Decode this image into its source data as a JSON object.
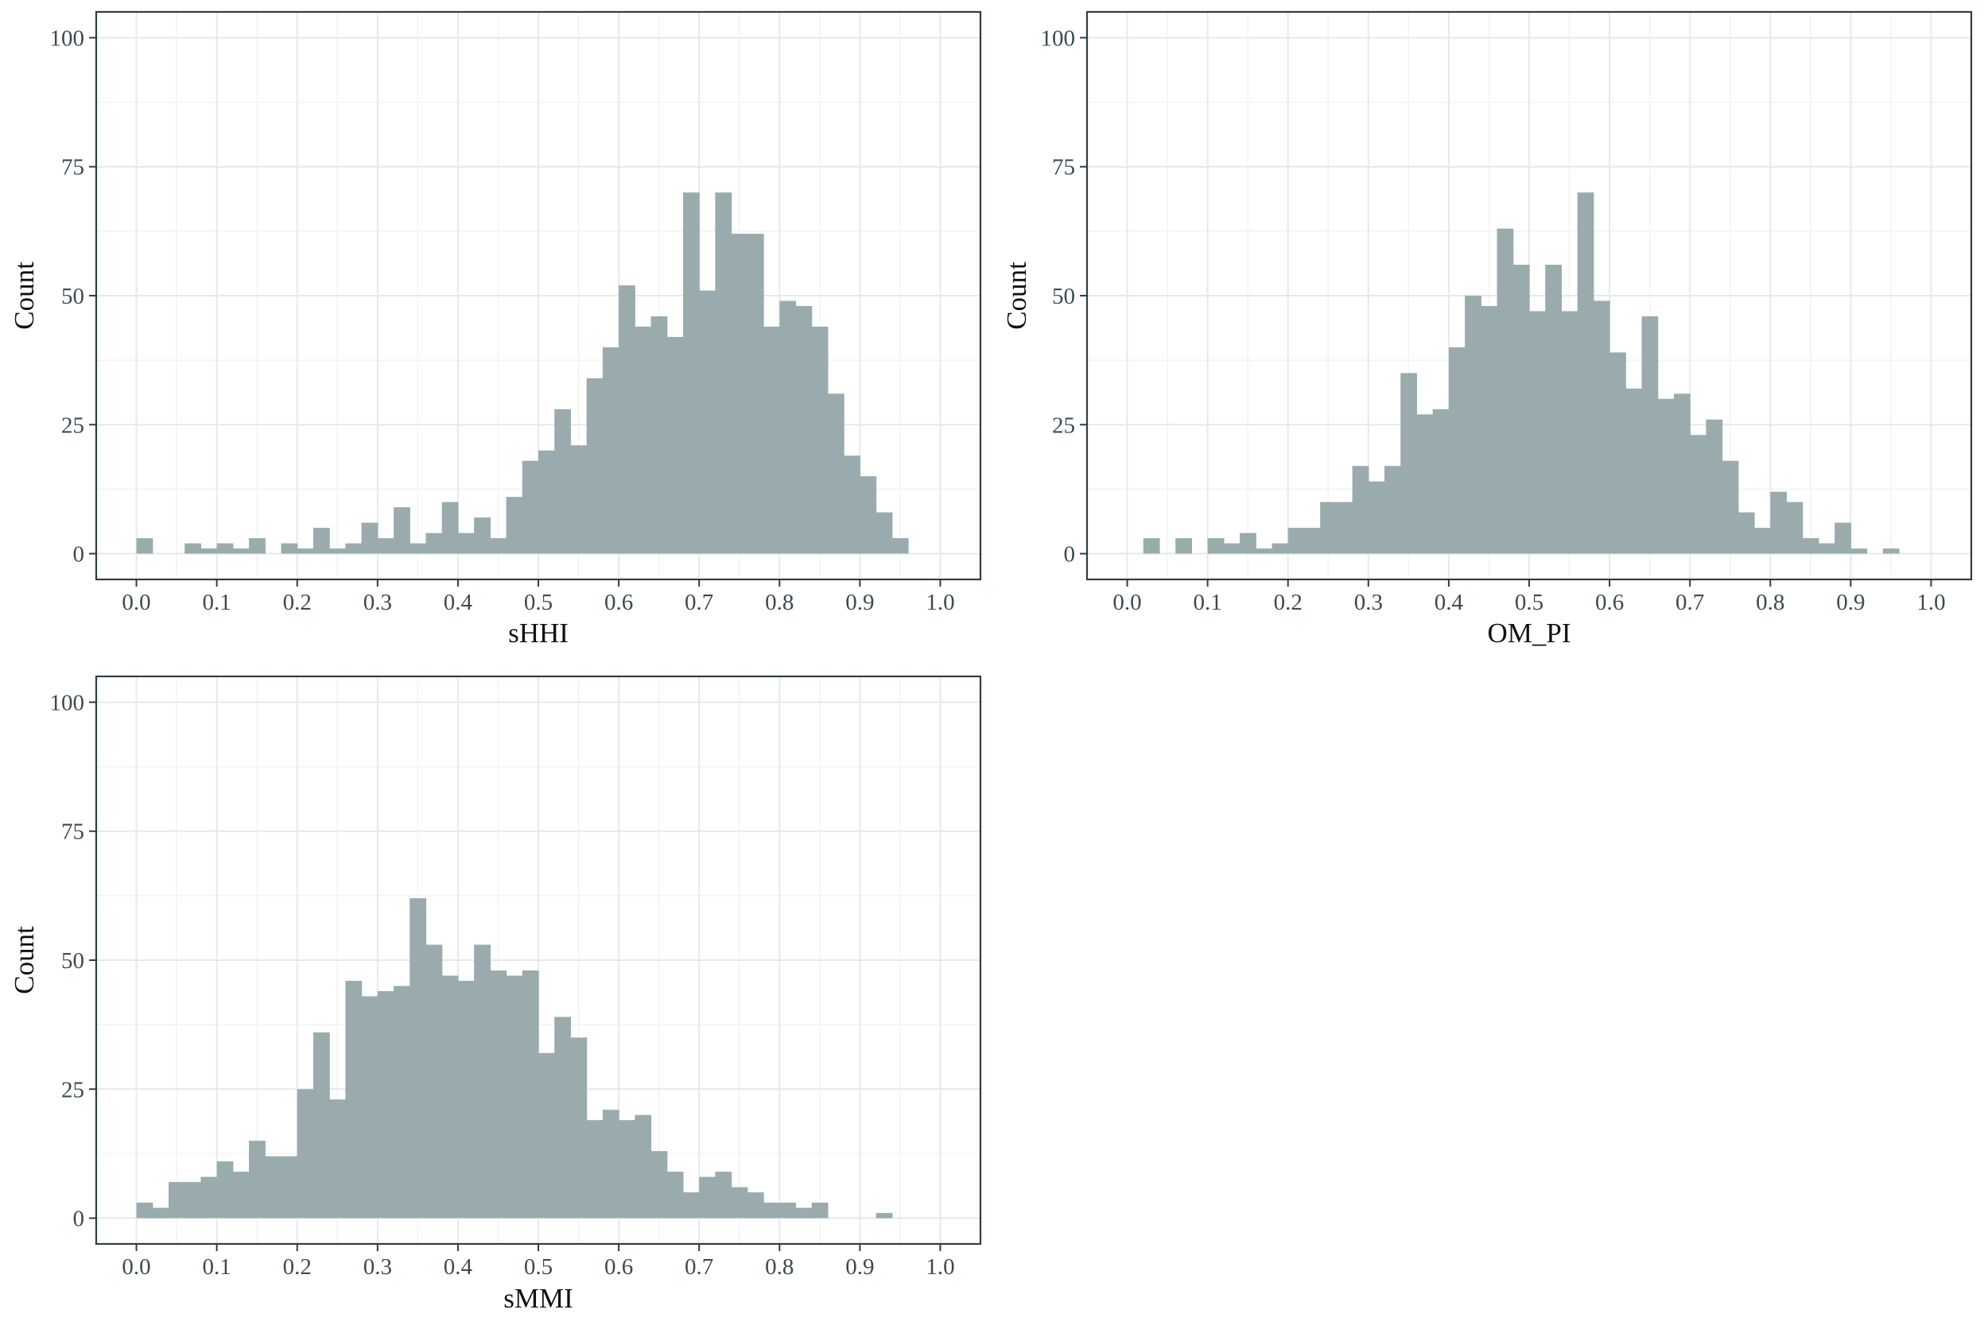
{
  "theme": {
    "bar_fill": "#9aabae",
    "panel_border": "#2f3d45",
    "grid_major": "#e6e9ea",
    "grid_minor": "#f1f3f4",
    "tick_text": "#3c4a52",
    "axis_title": "#111111"
  },
  "chart_data": [
    {
      "type": "bar",
      "subtype": "histogram",
      "title": "",
      "xlabel": "sHHI",
      "ylabel": "Count",
      "xlim": [
        -0.05,
        1.05
      ],
      "ylim": [
        -5,
        105
      ],
      "x_ticks": [
        0.0,
        0.1,
        0.2,
        0.3,
        0.4,
        0.5,
        0.6,
        0.7,
        0.8,
        0.9,
        1.0
      ],
      "x_tick_labels": [
        "0.0",
        "0.1",
        "0.2",
        "0.3",
        "0.4",
        "0.5",
        "0.6",
        "0.7",
        "0.8",
        "0.9",
        "1.0"
      ],
      "y_ticks": [
        0,
        25,
        50,
        75,
        100
      ],
      "y_tick_labels": [
        "0",
        "25",
        "50",
        "75",
        "100"
      ],
      "grid": true,
      "bin_start": 0.01,
      "bin_width": 0.02,
      "values": [
        3,
        0,
        0,
        2,
        1,
        2,
        1,
        3,
        0,
        2,
        1,
        5,
        1,
        2,
        6,
        3,
        9,
        2,
        4,
        10,
        4,
        7,
        3,
        11,
        18,
        20,
        28,
        21,
        34,
        40,
        52,
        44,
        46,
        42,
        70,
        51,
        70,
        62,
        62,
        44,
        49,
        48,
        44,
        31,
        19,
        15,
        8,
        3
      ]
    },
    {
      "type": "bar",
      "subtype": "histogram",
      "title": "",
      "xlabel": "OM_PI",
      "ylabel": "Count",
      "xlim": [
        -0.05,
        1.05
      ],
      "ylim": [
        -5,
        105
      ],
      "x_ticks": [
        0.0,
        0.1,
        0.2,
        0.3,
        0.4,
        0.5,
        0.6,
        0.7,
        0.8,
        0.9,
        1.0
      ],
      "x_tick_labels": [
        "0.0",
        "0.1",
        "0.2",
        "0.3",
        "0.4",
        "0.5",
        "0.6",
        "0.7",
        "0.8",
        "0.9",
        "1.0"
      ],
      "y_ticks": [
        0,
        25,
        50,
        75,
        100
      ],
      "y_tick_labels": [
        "0",
        "25",
        "50",
        "75",
        "100"
      ],
      "grid": true,
      "bin_start": 0.03,
      "bin_width": 0.02,
      "values": [
        3,
        0,
        3,
        0,
        3,
        2,
        4,
        1,
        2,
        5,
        5,
        10,
        10,
        17,
        14,
        17,
        35,
        27,
        28,
        40,
        50,
        48,
        63,
        56,
        47,
        56,
        47,
        70,
        49,
        39,
        32,
        46,
        30,
        31,
        23,
        26,
        18,
        8,
        5,
        12,
        10,
        3,
        2,
        6,
        1,
        0,
        1
      ]
    },
    {
      "type": "bar",
      "subtype": "histogram",
      "title": "",
      "xlabel": "sMMI",
      "ylabel": "Count",
      "xlim": [
        -0.05,
        1.05
      ],
      "ylim": [
        -5,
        105
      ],
      "x_ticks": [
        0.0,
        0.1,
        0.2,
        0.3,
        0.4,
        0.5,
        0.6,
        0.7,
        0.8,
        0.9,
        1.0
      ],
      "x_tick_labels": [
        "0.0",
        "0.1",
        "0.2",
        "0.3",
        "0.4",
        "0.5",
        "0.6",
        "0.7",
        "0.8",
        "0.9",
        "1.0"
      ],
      "y_ticks": [
        0,
        25,
        50,
        75,
        100
      ],
      "y_tick_labels": [
        "0",
        "25",
        "50",
        "75",
        "100"
      ],
      "grid": true,
      "bin_start": 0.01,
      "bin_width": 0.02,
      "values": [
        3,
        2,
        7,
        7,
        8,
        11,
        9,
        15,
        12,
        12,
        25,
        36,
        23,
        46,
        43,
        44,
        45,
        62,
        53,
        47,
        46,
        53,
        48,
        47,
        48,
        32,
        39,
        35,
        19,
        21,
        19,
        20,
        13,
        9,
        5,
        8,
        9,
        6,
        5,
        3,
        3,
        2,
        3,
        0,
        0,
        0,
        1
      ]
    }
  ]
}
